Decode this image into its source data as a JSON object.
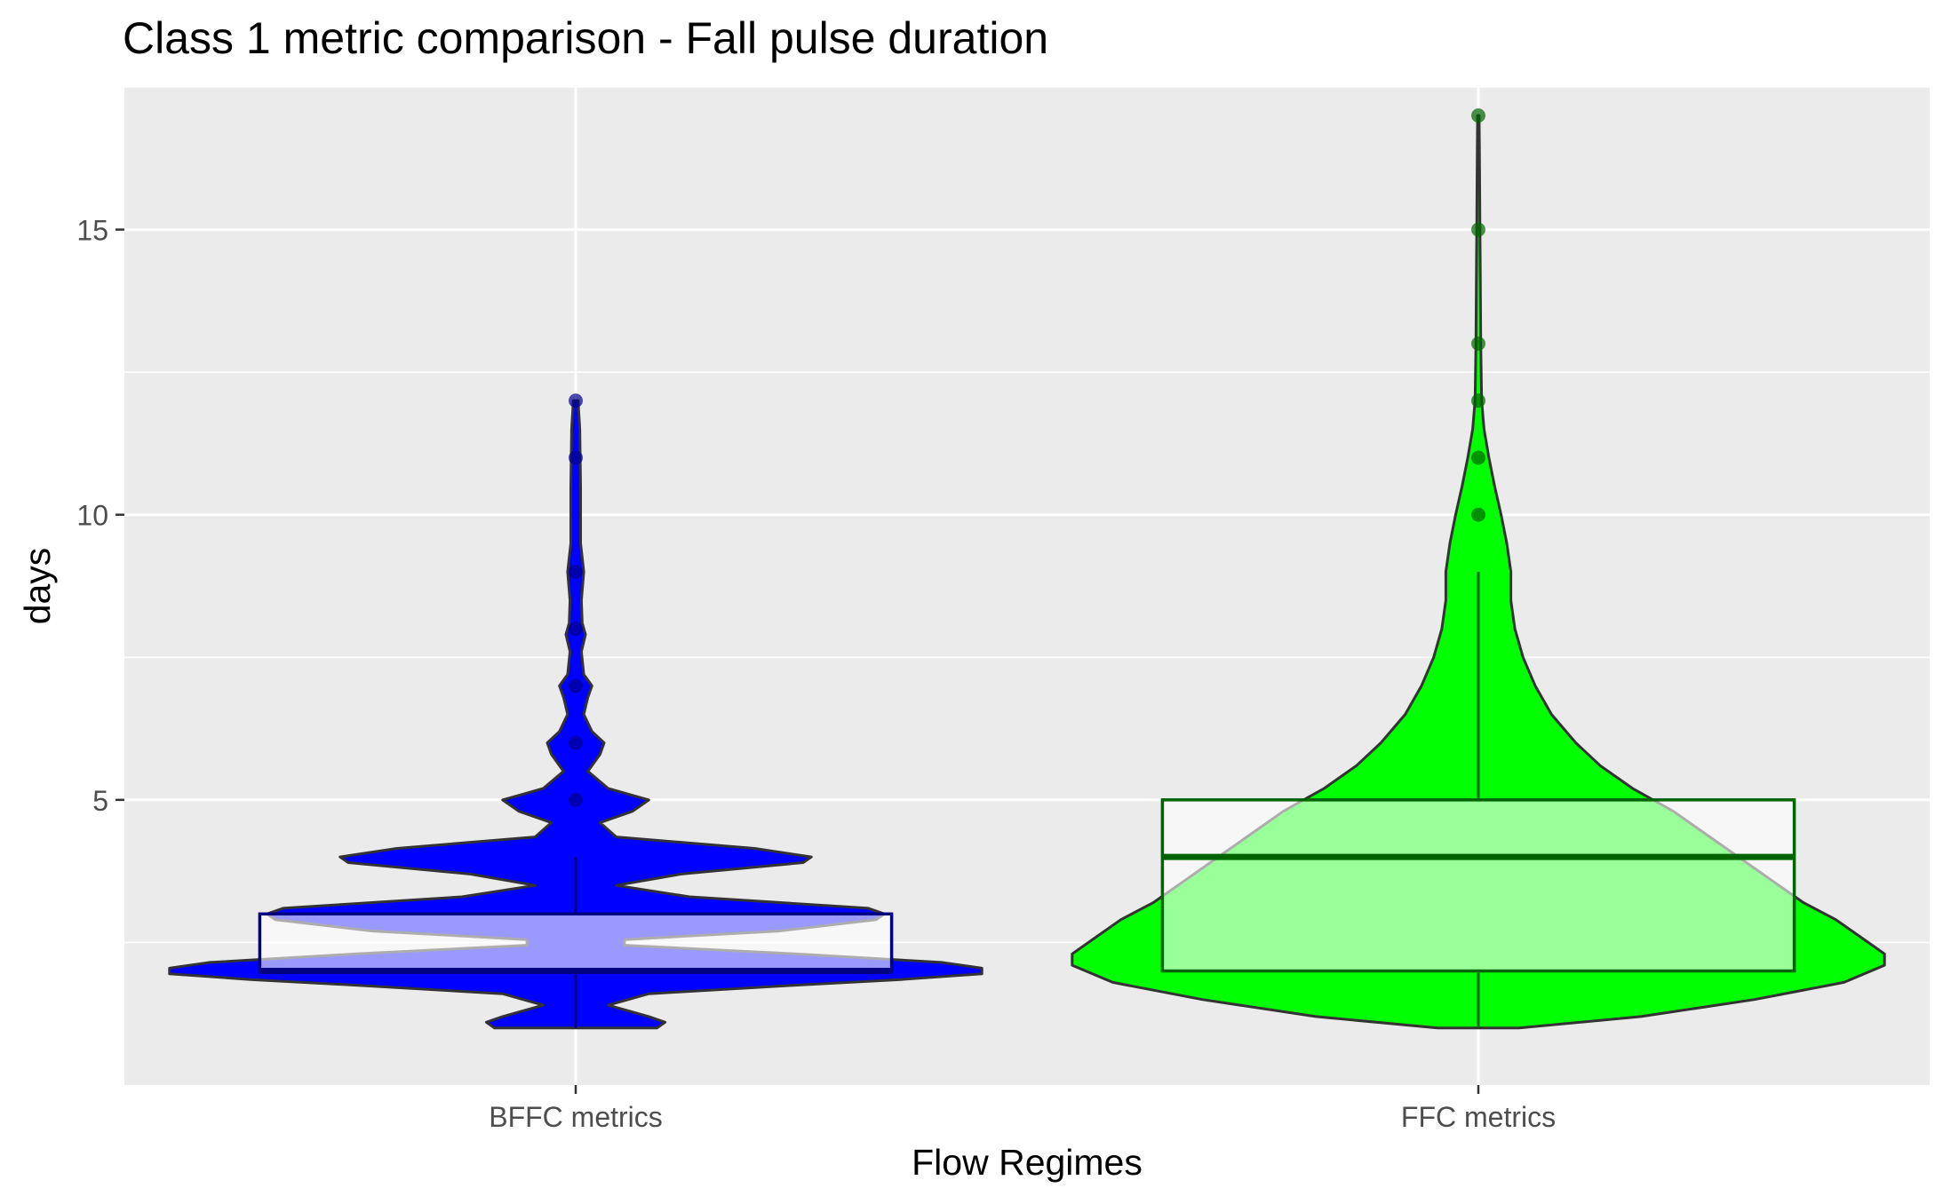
{
  "chart_data": {
    "type": "violin",
    "title": "Class 1 metric comparison - Fall pulse duration",
    "xlabel": "Flow Regimes",
    "ylabel": "days",
    "categories": [
      "BFFC metrics",
      "FFC metrics"
    ],
    "ylim": [
      0,
      17.5
    ],
    "yticks": [
      5,
      10,
      15
    ],
    "grid": true,
    "legend": "none",
    "series": [
      {
        "category": "BFFC metrics",
        "fill_color": "#0000ff",
        "outline_color": "#000080",
        "point_color": "#00008b",
        "box": {
          "q1": 2,
          "median": 2,
          "q3": 3,
          "whisker_low": 1,
          "whisker_high": 4
        },
        "outliers": [
          5,
          6,
          7,
          8,
          9,
          11,
          12
        ],
        "density": [
          [
            1.0,
            0.1
          ],
          [
            1.1,
            0.11
          ],
          [
            1.2,
            0.09
          ],
          [
            1.4,
            0.04
          ],
          [
            1.6,
            0.09
          ],
          [
            1.75,
            0.27
          ],
          [
            1.85,
            0.4
          ],
          [
            1.95,
            0.5
          ],
          [
            2.0,
            0.5
          ],
          [
            2.05,
            0.5
          ],
          [
            2.15,
            0.45
          ],
          [
            2.3,
            0.27
          ],
          [
            2.45,
            0.06
          ],
          [
            2.55,
            0.06
          ],
          [
            2.7,
            0.25
          ],
          [
            2.9,
            0.37
          ],
          [
            3.0,
            0.38
          ],
          [
            3.1,
            0.36
          ],
          [
            3.3,
            0.14
          ],
          [
            3.5,
            0.05
          ],
          [
            3.7,
            0.13
          ],
          [
            3.9,
            0.28
          ],
          [
            4.0,
            0.29
          ],
          [
            4.15,
            0.22
          ],
          [
            4.35,
            0.05
          ],
          [
            4.6,
            0.03
          ],
          [
            4.8,
            0.07
          ],
          [
            5.0,
            0.09
          ],
          [
            5.2,
            0.04
          ],
          [
            5.5,
            0.015
          ],
          [
            5.8,
            0.03
          ],
          [
            6.0,
            0.035
          ],
          [
            6.2,
            0.02
          ],
          [
            6.5,
            0.01
          ],
          [
            6.8,
            0.015
          ],
          [
            7.0,
            0.02
          ],
          [
            7.2,
            0.01
          ],
          [
            7.6,
            0.007
          ],
          [
            7.9,
            0.012
          ],
          [
            8.1,
            0.008
          ],
          [
            8.5,
            0.007
          ],
          [
            9.0,
            0.01
          ],
          [
            9.5,
            0.006
          ],
          [
            10.5,
            0.006
          ],
          [
            11.5,
            0.005
          ],
          [
            12.0,
            0.003
          ]
        ]
      },
      {
        "category": "FFC metrics",
        "fill_color": "#00ff00",
        "outline_color": "#006400",
        "point_color": "#006400",
        "box": {
          "q1": 2,
          "median": 4,
          "q3": 5,
          "whisker_low": 1,
          "whisker_high": 9
        },
        "outliers": [
          10,
          11,
          12,
          13,
          15,
          17
        ],
        "density": [
          [
            1.0,
            0.05
          ],
          [
            1.2,
            0.2
          ],
          [
            1.5,
            0.34
          ],
          [
            1.8,
            0.45
          ],
          [
            2.1,
            0.5
          ],
          [
            2.3,
            0.5
          ],
          [
            2.6,
            0.47
          ],
          [
            2.9,
            0.44
          ],
          [
            3.2,
            0.4
          ],
          [
            3.6,
            0.36
          ],
          [
            4.0,
            0.32
          ],
          [
            4.4,
            0.28
          ],
          [
            4.8,
            0.24
          ],
          [
            5.2,
            0.19
          ],
          [
            5.6,
            0.15
          ],
          [
            6.0,
            0.12
          ],
          [
            6.5,
            0.09
          ],
          [
            7.0,
            0.07
          ],
          [
            7.5,
            0.055
          ],
          [
            8.0,
            0.045
          ],
          [
            8.5,
            0.04
          ],
          [
            9.0,
            0.04
          ],
          [
            9.5,
            0.035
          ],
          [
            10.0,
            0.028
          ],
          [
            10.5,
            0.02
          ],
          [
            11.0,
            0.013
          ],
          [
            11.5,
            0.007
          ],
          [
            12.0,
            0.004
          ],
          [
            13.0,
            0.003
          ],
          [
            14.0,
            0.0025
          ],
          [
            15.0,
            0.002
          ],
          [
            16.0,
            0.0015
          ],
          [
            17.0,
            0.001
          ]
        ]
      }
    ]
  }
}
